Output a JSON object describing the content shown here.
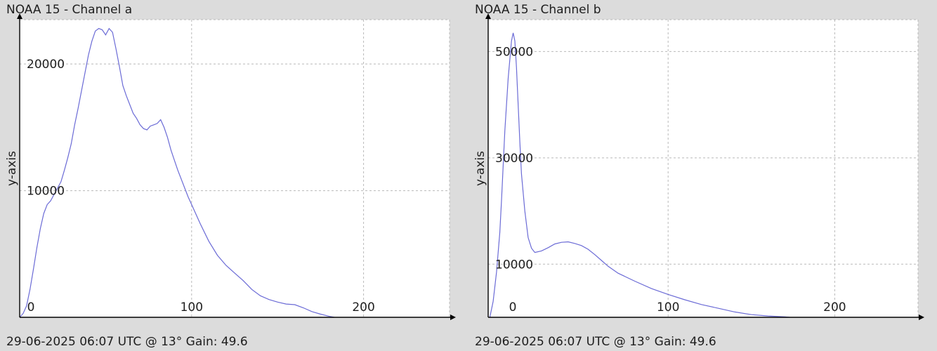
{
  "colors": {
    "background": "#dcdcdc",
    "plot_background": "#ffffff",
    "series": "#6b6bd6",
    "grid": "#b9b9b9"
  },
  "chart_data": [
    {
      "type": "line",
      "title": "NOAA 15 - Channel a",
      "footer": "29-06-2025 06:07 UTC @ 13° Gain: 49.6",
      "xlabel": "",
      "ylabel": "y-axis",
      "xlim": [
        0,
        250
      ],
      "ylim": [
        0,
        23500
      ],
      "xticks": [
        0,
        100,
        200
      ],
      "yticks": [
        10000,
        20000
      ],
      "grid": true,
      "legend": "none",
      "series": [
        {
          "x": [
            0,
            2,
            4,
            6,
            8,
            10,
            12,
            14,
            16,
            18,
            20,
            22,
            24,
            26,
            28,
            30,
            32,
            34,
            36,
            38,
            40,
            42,
            44,
            46,
            48,
            50,
            52,
            54,
            56,
            58,
            60,
            62,
            64,
            66,
            68,
            70,
            72,
            74,
            76,
            78,
            80,
            82,
            84,
            86,
            88,
            90,
            92,
            94,
            96,
            98,
            100,
            105,
            110,
            115,
            120,
            125,
            130,
            135,
            140,
            145,
            150,
            155,
            160,
            165,
            170,
            175,
            180,
            183
          ],
          "y": [
            0,
            300,
            900,
            2200,
            3800,
            5500,
            7000,
            8200,
            8900,
            9200,
            9700,
            10200,
            10700,
            11600,
            12600,
            13700,
            15200,
            16500,
            17900,
            19300,
            20700,
            21800,
            22600,
            22800,
            22700,
            22300,
            22800,
            22500,
            21200,
            19800,
            18300,
            17500,
            16800,
            16100,
            15700,
            15200,
            14900,
            14800,
            15100,
            15200,
            15300,
            15600,
            15000,
            14200,
            13200,
            12400,
            11600,
            10900,
            10200,
            9500,
            8900,
            7400,
            6000,
            4900,
            4100,
            3500,
            2900,
            2200,
            1700,
            1400,
            1200,
            1050,
            1000,
            750,
            450,
            250,
            80,
            0
          ]
        }
      ]
    },
    {
      "type": "line",
      "title": "NOAA 15 - Channel b",
      "footer": "29-06-2025 06:07 UTC @ 13° Gain: 49.6",
      "xlabel": "",
      "ylabel": "y-axis",
      "xlim": [
        -8,
        250
      ],
      "ylim": [
        0,
        56000
      ],
      "xticks": [
        0,
        100,
        200
      ],
      "yticks": [
        10000,
        30000,
        50000
      ],
      "grid": true,
      "legend": "none",
      "series": [
        {
          "x": [
            -7,
            -5,
            -3,
            -1,
            0,
            2,
            4,
            6,
            7,
            8,
            9,
            10,
            11,
            12,
            14,
            16,
            18,
            20,
            24,
            28,
            32,
            36,
            40,
            44,
            48,
            52,
            56,
            60,
            64,
            70,
            80,
            90,
            100,
            110,
            120,
            130,
            140,
            150,
            160,
            170,
            173
          ],
          "y": [
            0,
            3000,
            8500,
            16000,
            22000,
            35000,
            45000,
            52000,
            53500,
            52000,
            47000,
            40000,
            33000,
            27000,
            20000,
            15000,
            13000,
            12200,
            12500,
            13100,
            13800,
            14100,
            14200,
            13900,
            13500,
            12800,
            11800,
            10700,
            9600,
            8300,
            6800,
            5400,
            4300,
            3300,
            2400,
            1700,
            1000,
            500,
            250,
            80,
            0
          ]
        }
      ]
    }
  ]
}
